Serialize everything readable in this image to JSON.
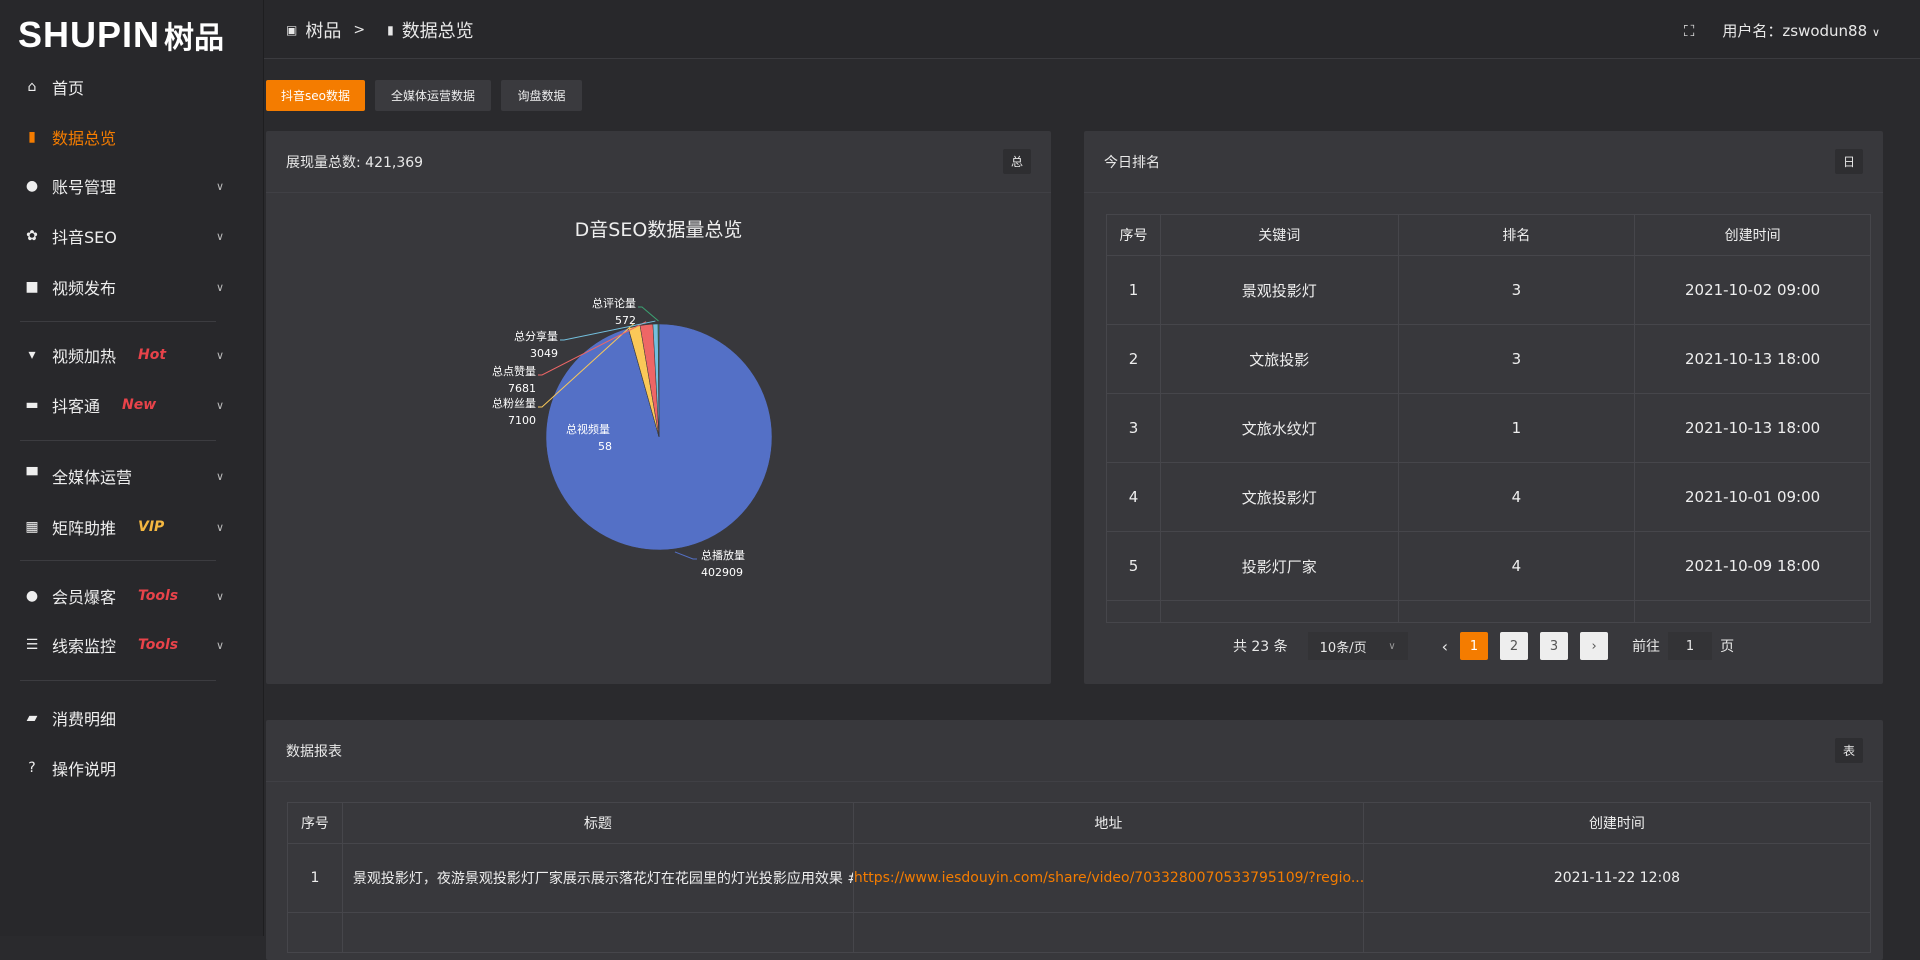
{
  "logo": {
    "text": "SHUPIN",
    "cn": "树品"
  },
  "sidebar": {
    "items": [
      {
        "label": "首页",
        "icon": "home-icon",
        "glyph": "⌂"
      },
      {
        "label": "数据总览",
        "icon": "bar-chart-icon",
        "glyph": "▮",
        "active": true
      },
      {
        "label": "账号管理",
        "icon": "user-icon",
        "glyph": "●",
        "chev": true
      },
      {
        "label": "抖音SEO",
        "icon": "gear-icon",
        "glyph": "✿",
        "chev": true
      },
      {
        "label": "视频发布",
        "icon": "camera-icon",
        "glyph": "■",
        "chev": true
      },
      {
        "label": "视频加热",
        "icon": "monitor-icon",
        "glyph": "▾",
        "chev": true,
        "badge": "Hot",
        "badge_color": "#e8434a"
      },
      {
        "label": "抖客通",
        "icon": "chat-icon",
        "glyph": "▬",
        "chev": true,
        "badge": "New",
        "badge_color": "#e8434a"
      },
      {
        "label": "全媒体运营",
        "icon": "desktop-icon",
        "glyph": "▀",
        "chev": true
      },
      {
        "label": "矩阵助推",
        "icon": "grid-icon",
        "glyph": "▦",
        "chev": true,
        "badge": "VIP",
        "badge_color": "#f5b841"
      },
      {
        "label": "会员爆客",
        "icon": "user-icon",
        "glyph": "●",
        "chev": true,
        "badge": "Tools",
        "badge_color": "#e8434a"
      },
      {
        "label": "线索监控",
        "icon": "sliders-icon",
        "glyph": "☰",
        "chev": true,
        "badge": "Tools",
        "badge_color": "#e8434a"
      },
      {
        "label": "消费明细",
        "icon": "wallet-icon",
        "glyph": "▰"
      },
      {
        "label": "操作说明",
        "icon": "help-icon",
        "glyph": "?"
      }
    ]
  },
  "header": {
    "breadcrumb": [
      "树品",
      "数据总览"
    ],
    "separator": ">",
    "user_label": "用户名：zswodun88"
  },
  "tabs": [
    "抖音seo数据",
    "全媒体运营数据",
    "询盘数据"
  ],
  "pie_card": {
    "title": "展现量总数: 421,369",
    "tag": "总"
  },
  "chart_data": {
    "type": "pie",
    "title": "D音SEO数据量总览",
    "legend_position": "bottom",
    "slices": [
      {
        "name": "总播放量",
        "value": 402909,
        "color": "#5470c6"
      },
      {
        "name": "总视频量",
        "value": 58,
        "color": "#91cc75"
      },
      {
        "name": "总粉丝量",
        "value": 7100,
        "color": "#fac858"
      },
      {
        "name": "总点赞量",
        "value": 7681,
        "color": "#ee6666"
      },
      {
        "name": "总分享量",
        "value": 3049,
        "color": "#73c0de"
      },
      {
        "name": "总评论量",
        "value": 572,
        "color": "#3ba272"
      }
    ]
  },
  "rank_card": {
    "title": "今日排名",
    "tag": "日",
    "columns": [
      "序号",
      "关键词",
      "排名",
      "创建时间"
    ],
    "rows": [
      [
        "1",
        "景观投影灯",
        "3",
        "2021-10-02 09:00"
      ],
      [
        "2",
        "文旅投影",
        "3",
        "2021-10-13 18:00"
      ],
      [
        "3",
        "文旅水纹灯",
        "1",
        "2021-10-13 18:00"
      ],
      [
        "4",
        "文旅投影灯",
        "4",
        "2021-10-01 09:00"
      ],
      [
        "5",
        "投影灯厂家",
        "4",
        "2021-10-09 18:00"
      ]
    ],
    "pager": {
      "total": "共 23 条",
      "page_size": "10条/页",
      "pages": [
        "1",
        "2",
        "3"
      ],
      "current": "1",
      "goto_label": "前往",
      "goto_value": "1",
      "page_suffix": "页"
    }
  },
  "report_card": {
    "title": "数据报表",
    "tag": "表",
    "columns": [
      "序号",
      "标题",
      "地址",
      "创建时间"
    ],
    "rows": [
      [
        "1",
        "景观投影灯，夜游景观投影灯厂家展示展示落花灯在花园里的灯光投影应用效果 #",
        "https://www.iesdouyin.com/share/video/7033280070533795109/?regio...",
        "2021-11-22 12:08"
      ]
    ]
  },
  "colors": {
    "accent": "#f47c00",
    "link": "#f47c00"
  }
}
